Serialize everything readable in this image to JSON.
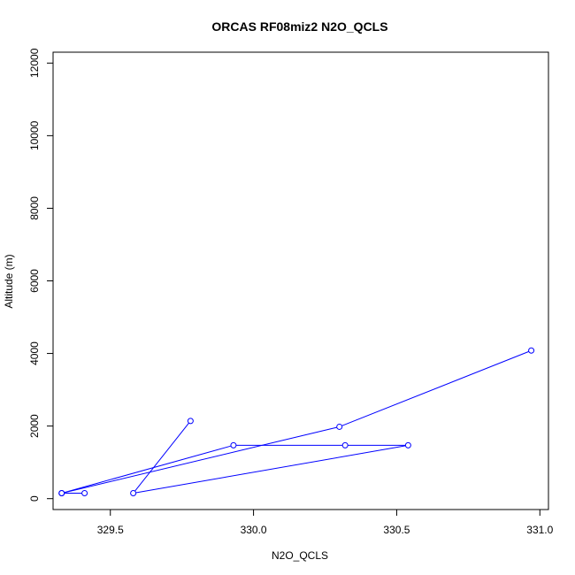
{
  "chart_data": {
    "type": "line",
    "title": "ORCAS RF08miz2 N2O_QCLS",
    "xlabel": "N2O_QCLS",
    "ylabel": "Altitude (m)",
    "xlim": [
      329.3,
      331.03
    ],
    "ylim": [
      -300,
      12300
    ],
    "xticks": [
      "329.5",
      "330.0",
      "330.5",
      "331.0"
    ],
    "yticks": [
      "0",
      "2000",
      "4000",
      "6000",
      "8000",
      "10000",
      "12000"
    ],
    "color": "#0000ff",
    "grid": false,
    "series": [
      {
        "x": [
          330.97,
          330.3,
          329.33,
          329.41,
          329.33,
          329.93,
          330.32,
          330.54,
          329.58,
          329.78
        ],
        "y": [
          4080,
          1980,
          150,
          150,
          150,
          1470,
          1470,
          1470,
          150,
          2140
        ]
      }
    ]
  }
}
